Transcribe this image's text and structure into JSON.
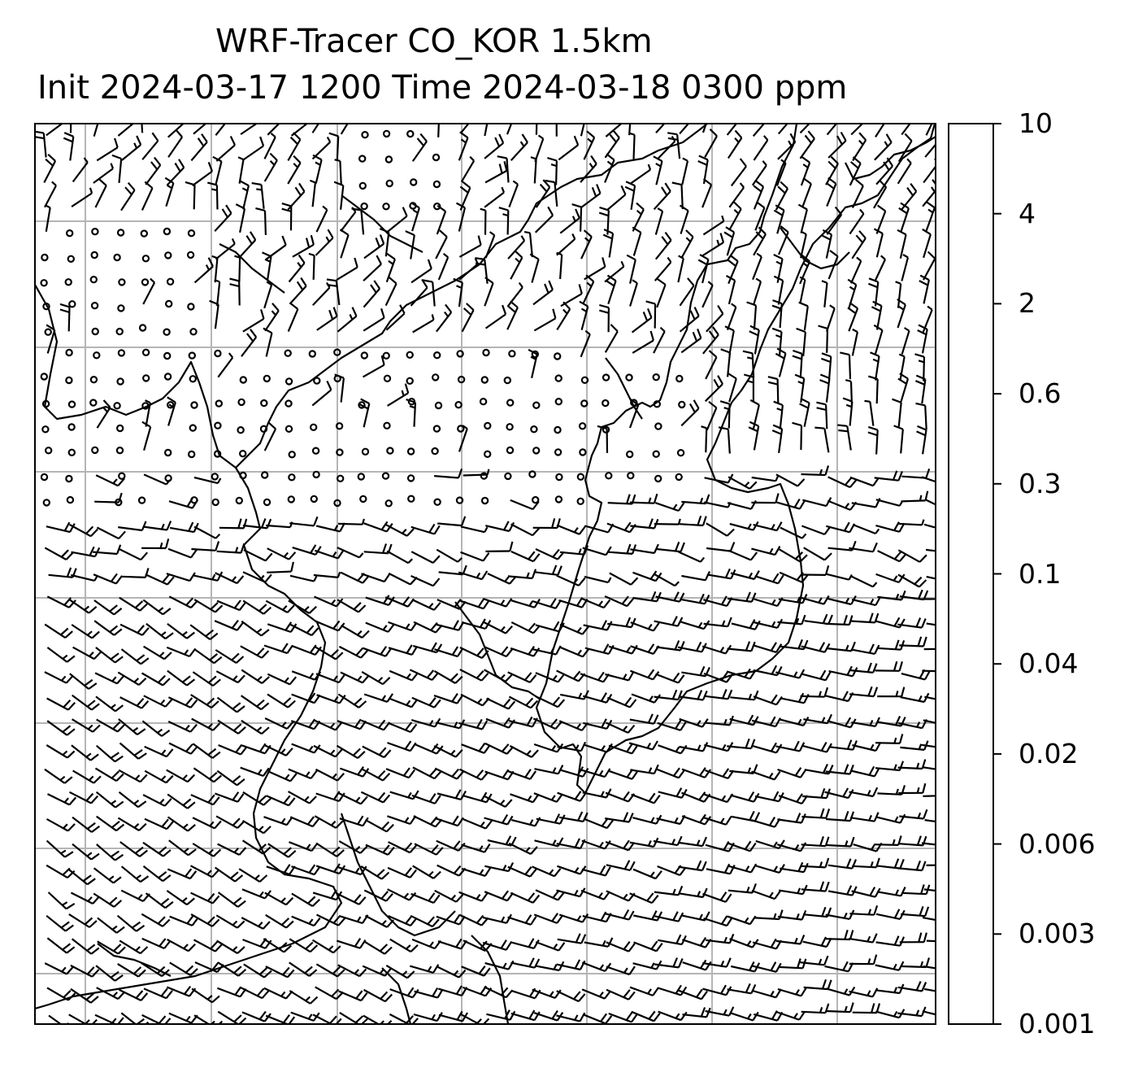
{
  "title": {
    "line1": "WRF-Tracer CO_KOR 1.5km",
    "line2": "Init 2024-03-17 1200 Time 2024-03-18 0300 ppm"
  },
  "colorbar": {
    "levels": [
      "0.001",
      "0.003",
      "0.006",
      "0.02",
      "0.04",
      "0.1",
      "0.3",
      "0.6",
      "2",
      "4",
      "10"
    ],
    "colors": [
      "#6a2bff",
      "#3b6ff5",
      "#06b4ee",
      "#2fd8d2",
      "#5ef5c2",
      "#90f79c",
      "#d2e084",
      "#ffac5e",
      "#ff6d3a",
      "#ff2a18"
    ]
  },
  "map": {
    "gridlines": true,
    "wind_barbs": true,
    "coastlines": true
  }
}
